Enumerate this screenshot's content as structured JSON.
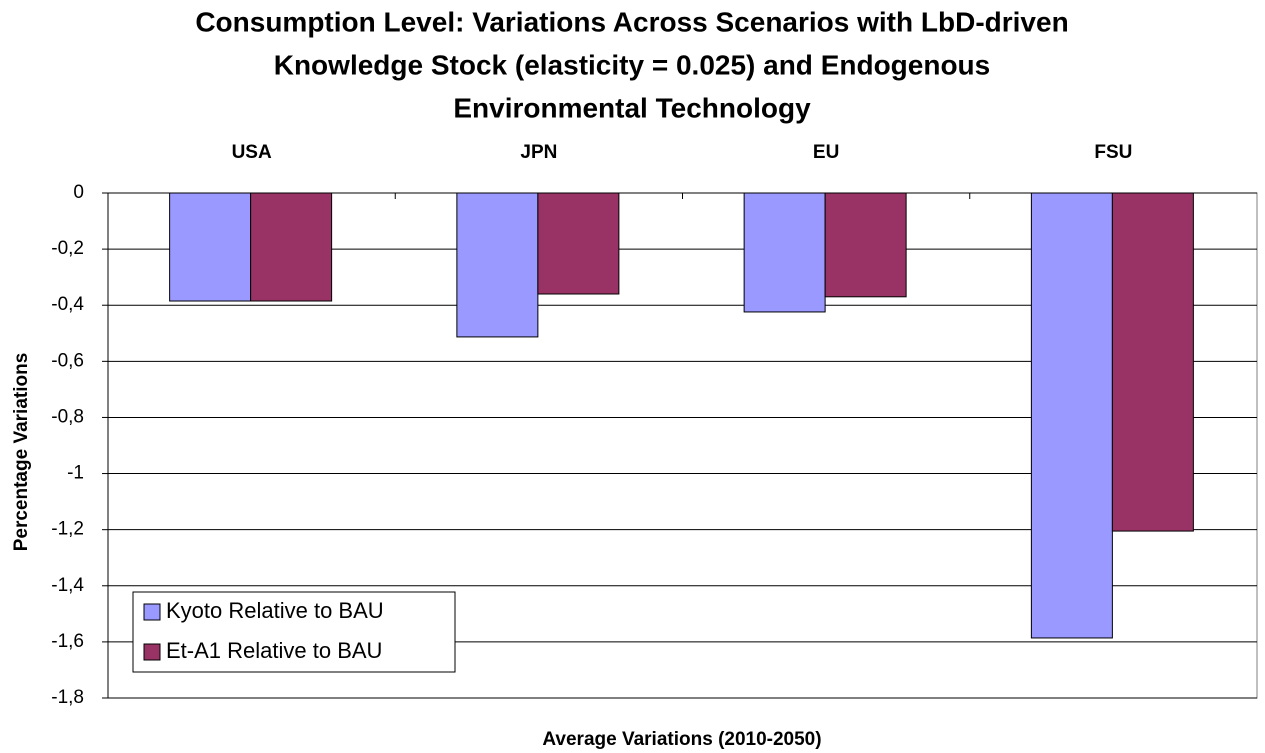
{
  "chart_data": {
    "type": "bar",
    "title": [
      "Consumption Level: Variations Across Scenarios with LbD-driven",
      "Knowledge Stock (elasticity = 0.025) and Endogenous",
      "Environmental Technology"
    ],
    "categories": [
      "USA",
      "JPN",
      "EU",
      "FSU"
    ],
    "series": [
      {
        "name": "Kyoto Relative to BAU",
        "color": "#9999ff",
        "values": [
          -0.385,
          -0.513,
          -0.424,
          -1.586
        ]
      },
      {
        "name": "Et-A1 Relative to BAU",
        "color": "#993366",
        "values": [
          -0.385,
          -0.36,
          -0.37,
          -1.205
        ]
      }
    ],
    "ylim": [
      -1.8,
      0
    ],
    "yticks": [
      0,
      {
        "value": -0.2,
        "label": "-0,2"
      },
      {
        "value": -0.4,
        "label": "-0,4"
      },
      {
        "value": -0.6,
        "label": "-0,6"
      },
      {
        "value": -0.8,
        "label": "-0,8"
      },
      -1,
      {
        "value": -1.2,
        "label": "-1,2"
      },
      {
        "value": -1.4,
        "label": "-1,4"
      },
      {
        "value": -1.6,
        "label": "-1,6"
      },
      {
        "value": -1.8,
        "label": "-1,8"
      }
    ],
    "y_label": "Percentage Variations",
    "x_label": "Average Variations (2010-2050)",
    "grid": true,
    "legend": "lower-left"
  }
}
